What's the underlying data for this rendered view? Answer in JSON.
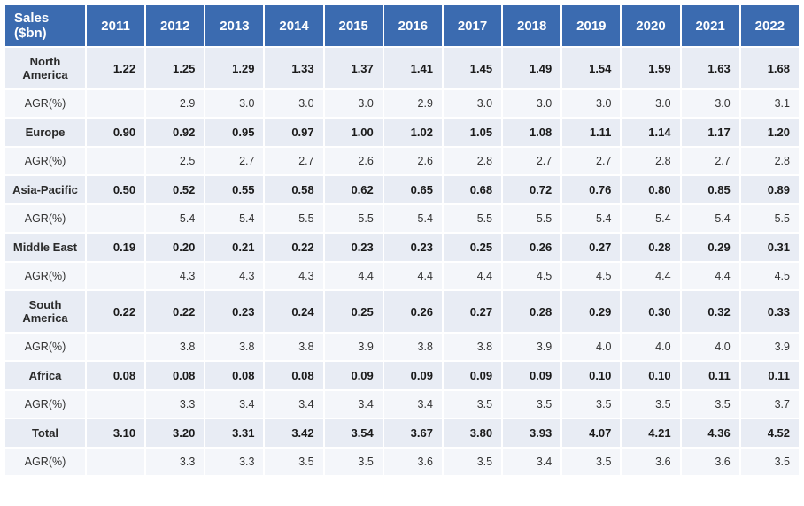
{
  "table": {
    "cornerLabel": "Sales ($bn)",
    "years": [
      "2011",
      "2012",
      "2013",
      "2014",
      "2015",
      "2016",
      "2017",
      "2018",
      "2019",
      "2020",
      "2021",
      "2022"
    ],
    "agrLabel": "AGR(%)",
    "rows": [
      {
        "label": "North America",
        "sales": [
          "1.22",
          "1.25",
          "1.29",
          "1.33",
          "1.37",
          "1.41",
          "1.45",
          "1.49",
          "1.54",
          "1.59",
          "1.63",
          "1.68"
        ],
        "agr": [
          "",
          "2.9",
          "3.0",
          "3.0",
          "3.0",
          "2.9",
          "3.0",
          "3.0",
          "3.0",
          "3.0",
          "3.0",
          "3.1"
        ]
      },
      {
        "label": "Europe",
        "sales": [
          "0.90",
          "0.92",
          "0.95",
          "0.97",
          "1.00",
          "1.02",
          "1.05",
          "1.08",
          "1.11",
          "1.14",
          "1.17",
          "1.20"
        ],
        "agr": [
          "",
          "2.5",
          "2.7",
          "2.7",
          "2.6",
          "2.6",
          "2.8",
          "2.7",
          "2.7",
          "2.8",
          "2.7",
          "2.8"
        ]
      },
      {
        "label": "Asia-Pacific",
        "sales": [
          "0.50",
          "0.52",
          "0.55",
          "0.58",
          "0.62",
          "0.65",
          "0.68",
          "0.72",
          "0.76",
          "0.80",
          "0.85",
          "0.89"
        ],
        "agr": [
          "",
          "5.4",
          "5.4",
          "5.5",
          "5.5",
          "5.4",
          "5.5",
          "5.5",
          "5.4",
          "5.4",
          "5.4",
          "5.5"
        ]
      },
      {
        "label": "Middle East",
        "sales": [
          "0.19",
          "0.20",
          "0.21",
          "0.22",
          "0.23",
          "0.23",
          "0.25",
          "0.26",
          "0.27",
          "0.28",
          "0.29",
          "0.31"
        ],
        "agr": [
          "",
          "4.3",
          "4.3",
          "4.3",
          "4.4",
          "4.4",
          "4.4",
          "4.5",
          "4.5",
          "4.4",
          "4.4",
          "4.5"
        ]
      },
      {
        "label": "South America",
        "sales": [
          "0.22",
          "0.22",
          "0.23",
          "0.24",
          "0.25",
          "0.26",
          "0.27",
          "0.28",
          "0.29",
          "0.30",
          "0.32",
          "0.33"
        ],
        "agr": [
          "",
          "3.8",
          "3.8",
          "3.8",
          "3.9",
          "3.8",
          "3.8",
          "3.9",
          "4.0",
          "4.0",
          "4.0",
          "3.9"
        ]
      },
      {
        "label": "Africa",
        "sales": [
          "0.08",
          "0.08",
          "0.08",
          "0.08",
          "0.09",
          "0.09",
          "0.09",
          "0.09",
          "0.10",
          "0.10",
          "0.11",
          "0.11"
        ],
        "agr": [
          "",
          "3.3",
          "3.4",
          "3.4",
          "3.4",
          "3.4",
          "3.5",
          "3.5",
          "3.5",
          "3.5",
          "3.5",
          "3.7"
        ]
      },
      {
        "label": "Total",
        "sales": [
          "3.10",
          "3.20",
          "3.31",
          "3.42",
          "3.54",
          "3.67",
          "3.80",
          "3.93",
          "4.07",
          "4.21",
          "4.36",
          "4.52"
        ],
        "agr": [
          "",
          "3.3",
          "3.3",
          "3.5",
          "3.5",
          "3.6",
          "3.5",
          "3.4",
          "3.5",
          "3.6",
          "3.6",
          "3.5"
        ]
      }
    ],
    "style": {
      "headerBg": "#3b6bb0",
      "headerFg": "#ffffff",
      "boldRowBg": "#e8ecf4",
      "agrRowBg": "#f4f6fa",
      "borderColor": "#ffffff",
      "fontFamily": "Segoe UI",
      "headerFontSize": 15,
      "cellFontSize": 13
    }
  }
}
